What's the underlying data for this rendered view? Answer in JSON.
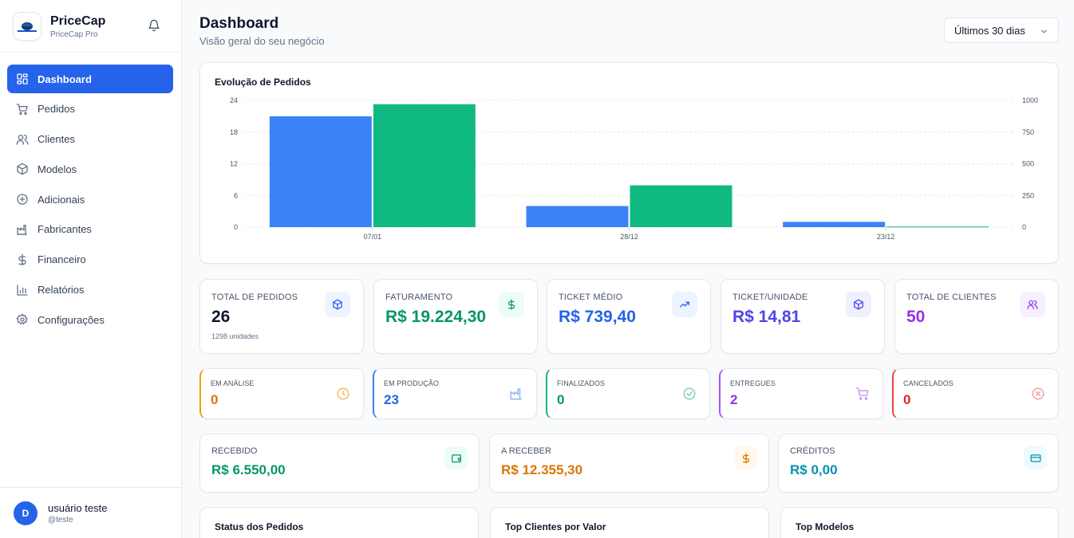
{
  "sidebar": {
    "brand_name": "PriceCap",
    "brand_sub": "PriceCap Pro",
    "logo_text": "PriceCap",
    "items": [
      {
        "label": "Dashboard",
        "icon": "layout-grid-icon",
        "active": true
      },
      {
        "label": "Pedidos",
        "icon": "cart-icon"
      },
      {
        "label": "Clientes",
        "icon": "users-icon"
      },
      {
        "label": "Modelos",
        "icon": "box-icon"
      },
      {
        "label": "Adicionais",
        "icon": "plus-circle-icon"
      },
      {
        "label": "Fabricantes",
        "icon": "factory-icon"
      },
      {
        "label": "Financeiro",
        "icon": "dollar-icon"
      },
      {
        "label": "Relatórios",
        "icon": "bar-chart-icon"
      },
      {
        "label": "Configurações",
        "icon": "gear-icon"
      }
    ],
    "user": {
      "initial": "D",
      "name": "usuário teste",
      "handle": "@teste"
    }
  },
  "header": {
    "title": "Dashboard",
    "subtitle": "Visão geral do seu negócio",
    "period_select": "Últimos 30 dias"
  },
  "chart_data": {
    "type": "bar",
    "title": "Evolução de Pedidos",
    "categories": [
      "07/01",
      "28/12",
      "23/12"
    ],
    "series": [
      {
        "axis": "left",
        "color": "#3b82f6",
        "values": [
          21,
          4,
          1
        ]
      },
      {
        "axis": "right",
        "color": "#10b981",
        "values": [
          970,
          330,
          5
        ]
      }
    ],
    "y_left": {
      "range": [
        0,
        24
      ],
      "ticks": [
        0,
        6,
        12,
        18,
        24
      ]
    },
    "y_right": {
      "range": [
        0,
        1000
      ],
      "ticks": [
        0,
        250,
        500,
        750,
        1000
      ]
    },
    "grid": "dashed-horizontal",
    "legend": "none"
  },
  "metrics": [
    {
      "label": "TOTAL DE PEDIDOS",
      "value": "26",
      "sub": "1298 unidades",
      "color": "#0f172a",
      "icon": "box-icon",
      "icon_color": "#2563eb",
      "icon_bg": "#eef4ff"
    },
    {
      "label": "FATURAMENTO",
      "value": "R$ 19.224,30",
      "color": "#059669",
      "icon": "dollar-icon",
      "icon_color": "#059669",
      "icon_bg": "#ecfdf5"
    },
    {
      "label": "TICKET MÉDIO",
      "value": "R$ 739,40",
      "color": "#2563eb",
      "icon": "trending-up-icon",
      "icon_color": "#2563eb",
      "icon_bg": "#eef4ff"
    },
    {
      "label": "TICKET/UNIDADE",
      "value": "R$ 14,81",
      "color": "#4f46e5",
      "icon": "box-icon",
      "icon_color": "#4f46e5",
      "icon_bg": "#eef0ff"
    },
    {
      "label": "TOTAL DE CLIENTES",
      "value": "50",
      "color": "#9333ea",
      "icon": "users-icon",
      "icon_color": "#9333ea",
      "icon_bg": "#f7f0ff"
    }
  ],
  "statuses": [
    {
      "label": "EM ANÁLISE",
      "value": "0",
      "color": "#d97706",
      "border": "#f59e0b",
      "icon": "clock-icon",
      "icon_color": "#f5b860"
    },
    {
      "label": "EM PRODUÇÃO",
      "value": "23",
      "color": "#2563eb",
      "border": "#3b82f6",
      "icon": "factory-icon",
      "icon_color": "#93b4f0"
    },
    {
      "label": "FINALIZADOS",
      "value": "0",
      "color": "#059669",
      "border": "#10b981",
      "icon": "check-circle-icon",
      "icon_color": "#7fd1b0"
    },
    {
      "label": "ENTREGUES",
      "value": "2",
      "color": "#9333ea",
      "border": "#a855f7",
      "icon": "cart-icon",
      "icon_color": "#c7a0ef"
    },
    {
      "label": "CANCELADOS",
      "value": "0",
      "color": "#dc2626",
      "border": "#ef4444",
      "icon": "x-circle-icon",
      "icon_color": "#f2a0a0"
    }
  ],
  "finance": [
    {
      "label": "RECEBIDO",
      "value": "R$ 6.550,00",
      "color": "#059669",
      "icon": "wallet-icon",
      "icon_color": "#059669",
      "icon_bg": "#ecfdf5"
    },
    {
      "label": "A RECEBER",
      "value": "R$ 12.355,30",
      "color": "#d97706",
      "icon": "dollar-icon",
      "icon_color": "#d97706",
      "icon_bg": "#fff8eb"
    },
    {
      "label": "CRÉDITOS",
      "value": "R$ 0,00",
      "color": "#0891b2",
      "icon": "credit-card-icon",
      "icon_color": "#0891b2",
      "icon_bg": "#ecfbfd"
    }
  ],
  "bottom_panels": [
    {
      "title": "Status dos Pedidos"
    },
    {
      "title": "Top Clientes por Valor"
    },
    {
      "title": "Top Modelos"
    }
  ]
}
